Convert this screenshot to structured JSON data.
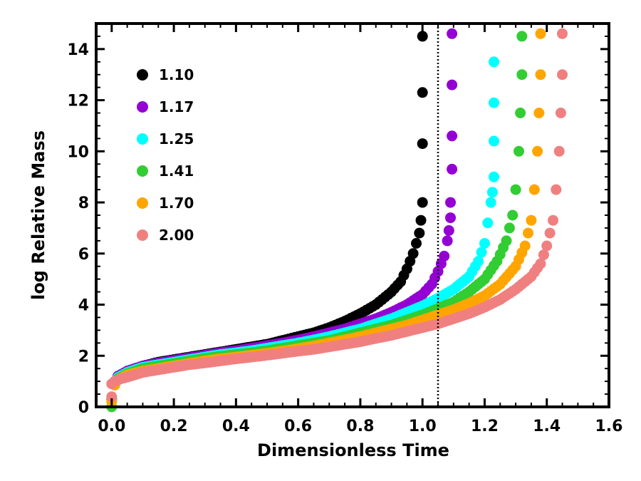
{
  "chart_data": {
    "type": "scatter",
    "title": "",
    "xlabel": "Dimensionless Time",
    "ylabel": "log Relative Mass",
    "xlim": [
      -0.05,
      1.6
    ],
    "ylim": [
      0,
      15
    ],
    "xticks": [
      "0.0",
      "0.2",
      "0.4",
      "0.6",
      "0.8",
      "1.0",
      "1.2",
      "1.4",
      "1.6"
    ],
    "yticks": [
      "0",
      "2",
      "4",
      "6",
      "8",
      "10",
      "12",
      "14"
    ],
    "vline": 1.05,
    "legend_position": "upper-left",
    "series": [
      {
        "name": "1.10",
        "color": "#000000",
        "divergence_time": 1.0,
        "points": [
          [
            0.0,
            0.3
          ],
          [
            0.01,
            1.0
          ],
          [
            0.02,
            1.2
          ],
          [
            0.05,
            1.4
          ],
          [
            0.1,
            1.6
          ],
          [
            0.15,
            1.75
          ],
          [
            0.2,
            1.85
          ],
          [
            0.25,
            1.95
          ],
          [
            0.3,
            2.05
          ],
          [
            0.35,
            2.15
          ],
          [
            0.4,
            2.25
          ],
          [
            0.45,
            2.35
          ],
          [
            0.5,
            2.45
          ],
          [
            0.55,
            2.6
          ],
          [
            0.6,
            2.75
          ],
          [
            0.65,
            2.9
          ],
          [
            0.7,
            3.1
          ],
          [
            0.75,
            3.35
          ],
          [
            0.8,
            3.65
          ],
          [
            0.85,
            4.0
          ],
          [
            0.9,
            4.5
          ],
          [
            0.93,
            4.9
          ],
          [
            0.95,
            5.4
          ],
          [
            0.97,
            6.0
          ],
          [
            0.98,
            6.4
          ],
          [
            0.99,
            6.8
          ],
          [
            0.995,
            7.3
          ],
          [
            1.0,
            8.0
          ],
          [
            1.0,
            10.3
          ],
          [
            1.0,
            12.3
          ],
          [
            1.0,
            14.5
          ]
        ]
      },
      {
        "name": "1.17",
        "color": "#9400d3",
        "divergence_time": 1.09,
        "points": [
          [
            0.0,
            0.3
          ],
          [
            0.01,
            1.0
          ],
          [
            0.02,
            1.2
          ],
          [
            0.05,
            1.4
          ],
          [
            0.1,
            1.6
          ],
          [
            0.15,
            1.72
          ],
          [
            0.2,
            1.82
          ],
          [
            0.25,
            1.92
          ],
          [
            0.3,
            2.02
          ],
          [
            0.35,
            2.12
          ],
          [
            0.4,
            2.2
          ],
          [
            0.45,
            2.3
          ],
          [
            0.5,
            2.4
          ],
          [
            0.55,
            2.5
          ],
          [
            0.6,
            2.62
          ],
          [
            0.65,
            2.75
          ],
          [
            0.7,
            2.9
          ],
          [
            0.75,
            3.05
          ],
          [
            0.8,
            3.25
          ],
          [
            0.85,
            3.45
          ],
          [
            0.9,
            3.7
          ],
          [
            0.95,
            4.0
          ],
          [
            1.0,
            4.4
          ],
          [
            1.03,
            4.8
          ],
          [
            1.05,
            5.3
          ],
          [
            1.07,
            5.9
          ],
          [
            1.08,
            6.5
          ],
          [
            1.085,
            6.9
          ],
          [
            1.09,
            7.4
          ],
          [
            1.09,
            8.0
          ],
          [
            1.095,
            9.3
          ],
          [
            1.095,
            10.6
          ],
          [
            1.095,
            12.6
          ],
          [
            1.095,
            14.6
          ]
        ]
      },
      {
        "name": "1.25",
        "color": "#00ffff",
        "divergence_time": 1.23,
        "points": [
          [
            0.0,
            0.3
          ],
          [
            0.01,
            1.0
          ],
          [
            0.02,
            1.15
          ],
          [
            0.05,
            1.35
          ],
          [
            0.1,
            1.55
          ],
          [
            0.15,
            1.65
          ],
          [
            0.2,
            1.75
          ],
          [
            0.25,
            1.85
          ],
          [
            0.3,
            1.95
          ],
          [
            0.35,
            2.05
          ],
          [
            0.4,
            2.12
          ],
          [
            0.45,
            2.2
          ],
          [
            0.5,
            2.3
          ],
          [
            0.55,
            2.4
          ],
          [
            0.6,
            2.5
          ],
          [
            0.65,
            2.62
          ],
          [
            0.7,
            2.75
          ],
          [
            0.75,
            2.9
          ],
          [
            0.8,
            3.05
          ],
          [
            0.85,
            3.25
          ],
          [
            0.9,
            3.45
          ],
          [
            0.95,
            3.7
          ],
          [
            1.0,
            3.95
          ],
          [
            1.05,
            4.25
          ],
          [
            1.1,
            4.6
          ],
          [
            1.15,
            5.1
          ],
          [
            1.18,
            5.7
          ],
          [
            1.2,
            6.4
          ],
          [
            1.21,
            7.2
          ],
          [
            1.22,
            8.0
          ],
          [
            1.225,
            8.4
          ],
          [
            1.23,
            9.0
          ],
          [
            1.23,
            10.4
          ],
          [
            1.23,
            11.9
          ],
          [
            1.23,
            13.5
          ]
        ]
      },
      {
        "name": "1.41",
        "color": "#32cd32",
        "divergence_time": 1.32,
        "points": [
          [
            0.0,
            0.0
          ],
          [
            0.01,
            0.9
          ],
          [
            0.02,
            1.1
          ],
          [
            0.05,
            1.3
          ],
          [
            0.1,
            1.5
          ],
          [
            0.15,
            1.6
          ],
          [
            0.2,
            1.7
          ],
          [
            0.25,
            1.8
          ],
          [
            0.3,
            1.9
          ],
          [
            0.35,
            1.98
          ],
          [
            0.4,
            2.05
          ],
          [
            0.45,
            2.12
          ],
          [
            0.5,
            2.2
          ],
          [
            0.55,
            2.3
          ],
          [
            0.6,
            2.4
          ],
          [
            0.65,
            2.5
          ],
          [
            0.7,
            2.6
          ],
          [
            0.75,
            2.75
          ],
          [
            0.8,
            2.9
          ],
          [
            0.85,
            3.05
          ],
          [
            0.9,
            3.2
          ],
          [
            0.95,
            3.4
          ],
          [
            1.0,
            3.6
          ],
          [
            1.05,
            3.85
          ],
          [
            1.1,
            4.1
          ],
          [
            1.15,
            4.5
          ],
          [
            1.2,
            5.0
          ],
          [
            1.24,
            5.7
          ],
          [
            1.27,
            6.5
          ],
          [
            1.29,
            7.5
          ],
          [
            1.3,
            8.5
          ],
          [
            1.31,
            10.0
          ],
          [
            1.315,
            11.5
          ],
          [
            1.32,
            13.0
          ],
          [
            1.32,
            14.5
          ]
        ]
      },
      {
        "name": "1.70",
        "color": "#ffa500",
        "divergence_time": 1.38,
        "points": [
          [
            0.0,
            0.2
          ],
          [
            0.01,
            0.85
          ],
          [
            0.02,
            1.05
          ],
          [
            0.05,
            1.25
          ],
          [
            0.1,
            1.4
          ],
          [
            0.15,
            1.5
          ],
          [
            0.2,
            1.6
          ],
          [
            0.25,
            1.7
          ],
          [
            0.3,
            1.8
          ],
          [
            0.35,
            1.88
          ],
          [
            0.4,
            1.95
          ],
          [
            0.45,
            2.02
          ],
          [
            0.5,
            2.1
          ],
          [
            0.55,
            2.18
          ],
          [
            0.6,
            2.28
          ],
          [
            0.65,
            2.38
          ],
          [
            0.7,
            2.5
          ],
          [
            0.75,
            2.62
          ],
          [
            0.8,
            2.75
          ],
          [
            0.85,
            2.9
          ],
          [
            0.9,
            3.05
          ],
          [
            0.95,
            3.2
          ],
          [
            1.0,
            3.4
          ],
          [
            1.05,
            3.6
          ],
          [
            1.1,
            3.8
          ],
          [
            1.15,
            4.05
          ],
          [
            1.2,
            4.35
          ],
          [
            1.25,
            4.8
          ],
          [
            1.3,
            5.5
          ],
          [
            1.33,
            6.3
          ],
          [
            1.35,
            7.3
          ],
          [
            1.36,
            8.5
          ],
          [
            1.37,
            10.0
          ],
          [
            1.375,
            11.5
          ],
          [
            1.38,
            13.0
          ],
          [
            1.38,
            14.6
          ]
        ]
      },
      {
        "name": "2.00",
        "color": "#f08080",
        "divergence_time": 1.45,
        "points": [
          [
            0.0,
            0.4
          ],
          [
            0.0,
            0.9
          ],
          [
            0.01,
            1.0
          ],
          [
            0.03,
            1.1
          ],
          [
            0.06,
            1.2
          ],
          [
            0.1,
            1.35
          ],
          [
            0.15,
            1.45
          ],
          [
            0.2,
            1.55
          ],
          [
            0.25,
            1.65
          ],
          [
            0.3,
            1.72
          ],
          [
            0.35,
            1.8
          ],
          [
            0.4,
            1.88
          ],
          [
            0.45,
            1.95
          ],
          [
            0.5,
            2.02
          ],
          [
            0.55,
            2.1
          ],
          [
            0.6,
            2.18
          ],
          [
            0.65,
            2.25
          ],
          [
            0.7,
            2.35
          ],
          [
            0.75,
            2.45
          ],
          [
            0.8,
            2.55
          ],
          [
            0.85,
            2.68
          ],
          [
            0.9,
            2.8
          ],
          [
            0.95,
            2.95
          ],
          [
            1.0,
            3.1
          ],
          [
            1.05,
            3.25
          ],
          [
            1.1,
            3.45
          ],
          [
            1.15,
            3.65
          ],
          [
            1.2,
            3.9
          ],
          [
            1.25,
            4.2
          ],
          [
            1.3,
            4.6
          ],
          [
            1.35,
            5.1
          ],
          [
            1.38,
            5.6
          ],
          [
            1.4,
            6.3
          ],
          [
            1.42,
            7.3
          ],
          [
            1.43,
            8.5
          ],
          [
            1.44,
            10.0
          ],
          [
            1.445,
            11.5
          ],
          [
            1.45,
            13.0
          ],
          [
            1.45,
            14.6
          ]
        ]
      }
    ]
  }
}
